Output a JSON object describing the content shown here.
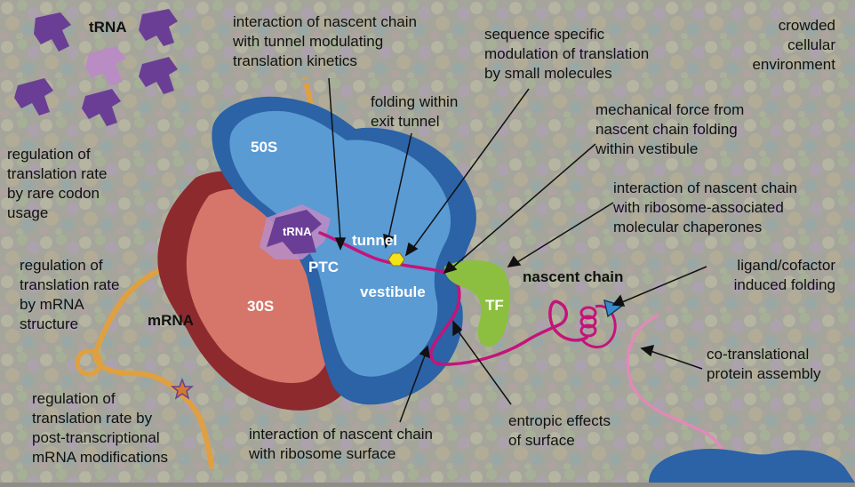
{
  "labels": {
    "trna_top": "tRNA",
    "rare_codon": "regulation of\ntranslation rate\nby rare codon\nusage",
    "mrna_structure": "regulation of\ntranslation rate\nby mRNA\nstructure",
    "mrna": "mRNA",
    "post_transcriptional": "regulation of\ntranslation rate by\npost-transcriptional\nmRNA modifications",
    "tunnel_interaction": "interaction of nascent chain\nwith tunnel modulating\ntranslation kinetics",
    "folding_tunnel": "folding within\nexit tunnel",
    "small_molecules": "sequence specific\nmodulation of translation\nby small molecules",
    "crowded": "crowded\ncellular\nenvironment",
    "mechanical_force": "mechanical force from\nnascent chain folding\nwithin vestibule",
    "chaperones": "interaction of nascent chain\nwith ribosome-associated\nmolecular chaperones",
    "nascent_chain": "nascent chain",
    "ligand": "ligand/cofactor\ninduced folding",
    "assembly": "co-translational\nprotein assembly",
    "entropic": "entropic effects\nof surface",
    "surface_interaction": "interaction of nascent chain\nwith ribosome surface",
    "s50": "50S",
    "s30": "30S",
    "trna_small": "tRNA",
    "ptc": "PTC",
    "tunnel": "tunnel",
    "vestibule": "vestibule",
    "tf": "TF"
  },
  "colors": {
    "background": "#8e8e86",
    "ribosome_50s_dark": "#2c62a6",
    "ribosome_50s_light": "#5a9bd4",
    "ribosome_30s_dark": "#8c2a2e",
    "ribosome_30s_light": "#d6766a",
    "trna": "#6a3e95",
    "trna_light": "#b98cc4",
    "mrna": "#e0a040",
    "nascent_chain": "#c4147a",
    "trigger_factor": "#8cbf3f",
    "ligand": "#3a8cc8",
    "small_molecule": "#f4e21a"
  }
}
